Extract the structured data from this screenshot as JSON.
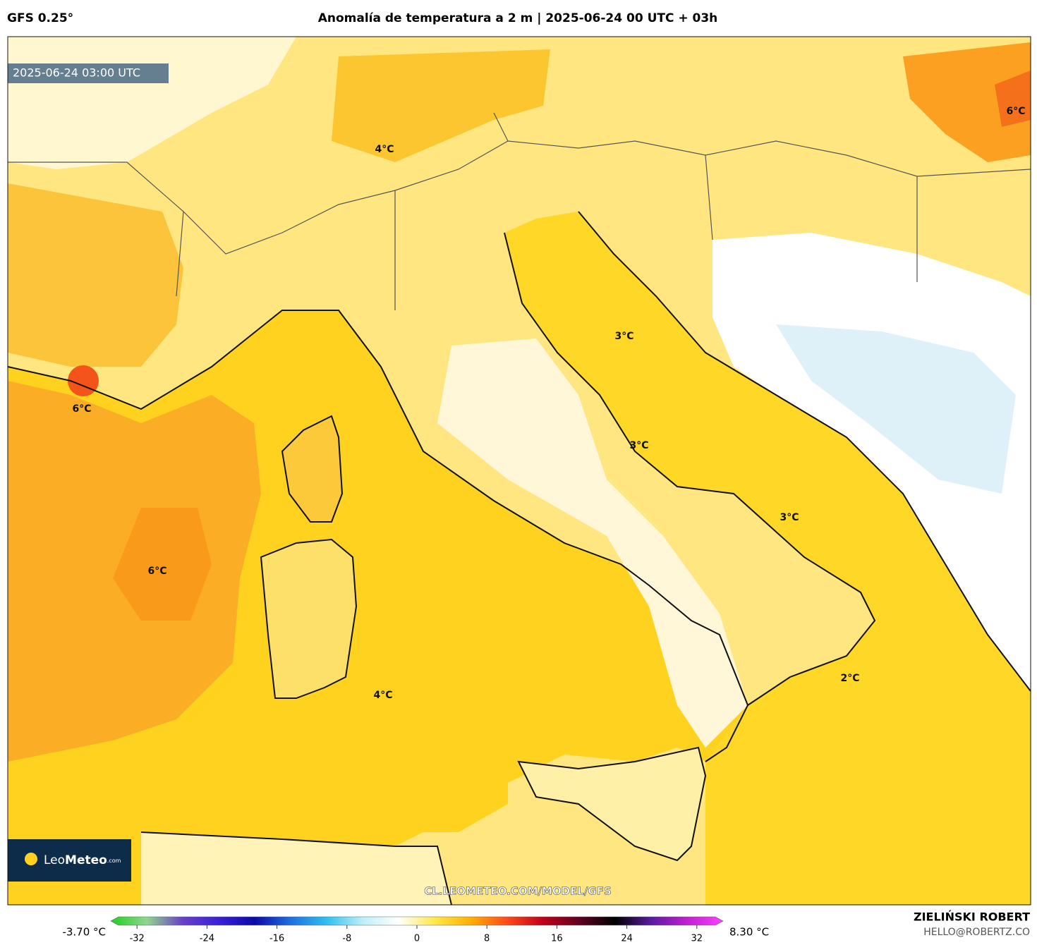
{
  "header": {
    "model": "GFS 0.25°",
    "title": "Anomalía de temperatura a 2 m | 2025-06-24 00 UTC + 03h",
    "valid_time": "2025-06-24 03:00 UTC"
  },
  "map": {
    "labels": [
      "4°C",
      "6°C",
      "6°C",
      "6°C",
      "3°C",
      "3°C",
      "3°C",
      "2°C",
      "4°C"
    ],
    "watermark": "CL.LEOMETEO.COM/MODEL/GFS"
  },
  "logo": {
    "name_light": "Leo",
    "name_bold": "Meteo",
    "suffix": ".com"
  },
  "colorbar": {
    "min_label": "-3.70 °C",
    "max_label": "8.30 °C",
    "range": [
      -35,
      35
    ],
    "ticks": [
      -32,
      -24,
      -16,
      -8,
      0,
      8,
      16,
      24,
      32
    ],
    "colors": [
      "#1fd01f",
      "#8fd68f",
      "#6a3fc8",
      "#3a1fd8",
      "#0a0aa8",
      "#1f6fe0",
      "#2fc0f0",
      "#bfeff8",
      "#ffffff",
      "#ffe84a",
      "#ffb000",
      "#ff4a1a",
      "#c0001a",
      "#600020",
      "#000000",
      "#5a1aa0",
      "#c020d0",
      "#ff40ff"
    ]
  },
  "credit": {
    "author": "ZIELIŃSKI ROBERT",
    "email": "HELLO@ROBERTZ.CO"
  }
}
